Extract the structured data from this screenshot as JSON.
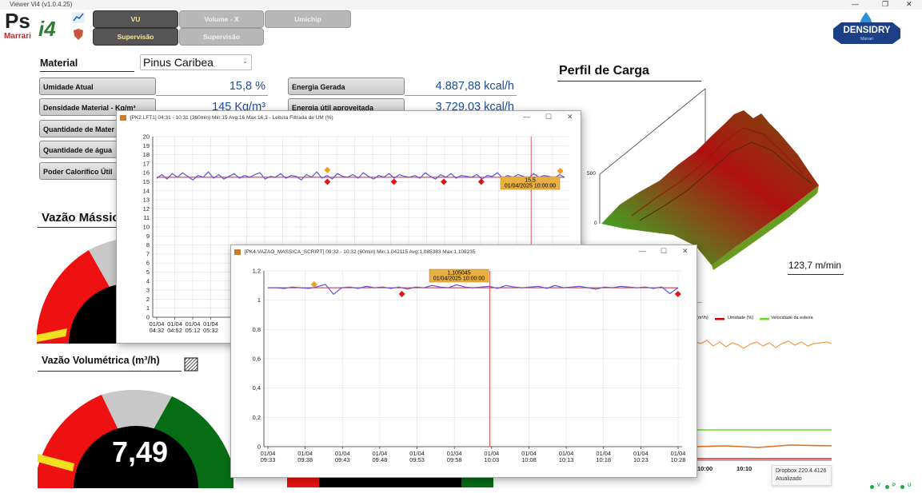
{
  "app": {
    "title": "Viewer Vi4 (v1.0.4.25)"
  },
  "logo": {
    "text_ps": "Ps",
    "text_i4": "i4",
    "text_brand": "Marrari"
  },
  "nav": {
    "row1": [
      "VU",
      "Volume - X",
      "Umichip"
    ],
    "row2": [
      "Supervisão",
      "Supervisão"
    ]
  },
  "densidry": {
    "name": "DENSIDRY",
    "sub": "Marrari"
  },
  "material": {
    "label": "Material",
    "selected": "Pinus Caribea"
  },
  "fields_left": [
    {
      "label": "Umidade Atual",
      "value": "15,8 %"
    },
    {
      "label": "Densidade Material - Kg/m³",
      "value": "145 Kg/m³"
    },
    {
      "label": "Quantidade de Mater",
      "value": ""
    },
    {
      "label": "Quantidade de água",
      "value": ""
    },
    {
      "label": "Poder Calorífico Útil",
      "value": ""
    }
  ],
  "fields_right": [
    {
      "label": "Energia Gerada",
      "value": "4.887,88 kcal/h"
    },
    {
      "label": "Energia útil aproveitada",
      "value": "3.729,03 kcal/h"
    }
  ],
  "section_massica": {
    "label": "Vazão Mássic"
  },
  "section_volumetrica": {
    "label": "Vazão Volumétrica (m³/h)",
    "value": "7,49"
  },
  "perfil": {
    "title": "Perfil de Carga",
    "tick_500": "500",
    "tick_0": "0",
    "speed": "123,7 m/min"
  },
  "background_chart": {
    "legend": [
      "(m³/h)",
      "Umidade (%)",
      "Velocidade da esteira"
    ],
    "legend_colors": [
      "#f0a050",
      "#cc0000",
      "#66dd22"
    ],
    "x_ticks": [
      "10:00",
      "10:10"
    ]
  },
  "dropbox": {
    "line1": "Dropbox 220.4.4126",
    "line2": "Atualizado"
  },
  "status_letters": [
    "V",
    "P",
    "U"
  ],
  "window1": {
    "title": "[PK2.LFT1]   04:31 - 10:31  (360min)   Min:15   Avg:16   Max:16,3   - Leitura Filtrada de UM (%)",
    "tooltip_value": "15,5",
    "tooltip_date": "01/04/2025 10:00:00"
  },
  "window2": {
    "title": "[PK4.VAZAO_MASSICA_SCRIPT]   09:32 - 10:32   (60min)   Min:1,042115   Avg:1,085383   Max:1,108235",
    "tooltip_value": "1,105045",
    "tooltip_date": "01/04/2025 10:00:00"
  },
  "window_controls": [
    "—",
    "☐",
    "✕"
  ],
  "chart_data": [
    {
      "type": "line",
      "title": "[PK2.LFT1] Leitura Filtrada de UM (%)",
      "xlabel": "",
      "ylabel": "",
      "ylim": [
        0,
        20
      ],
      "y_ticks": [
        0,
        1,
        2,
        3,
        4,
        5,
        6,
        7,
        8,
        9,
        10,
        11,
        12,
        13,
        14,
        15,
        16,
        17,
        18,
        19,
        20
      ],
      "x_ticks": [
        [
          "01/04",
          "04:32"
        ],
        [
          "01/04",
          "04:52"
        ],
        [
          "01/04",
          "05:12"
        ],
        [
          "01/04",
          "05:32"
        ]
      ],
      "series": [
        {
          "name": "UM",
          "color": "#6a4fd6",
          "values": [
            15.4,
            15.8,
            15.3,
            15.9,
            15.5,
            16.0,
            15.6,
            15.2,
            15.7,
            15.5,
            16.1,
            15.4,
            15.8,
            15.3,
            15.6,
            15.9,
            15.4,
            15.7,
            15.5,
            15.8,
            16.0,
            15.3,
            15.6,
            15.5,
            15.9,
            15.4,
            15.7,
            15.6,
            15.2,
            15.8,
            15.5,
            16.1,
            15.4,
            15.7,
            15.3,
            15.9,
            15.6,
            15.5,
            15.8,
            15.4,
            16.0,
            15.6,
            15.3,
            15.7,
            15.5,
            15.9,
            15.4,
            15.8,
            15.6,
            15.5,
            15.7,
            15.4,
            16.0,
            15.6,
            15.3,
            15.8,
            15.5,
            15.9,
            15.4,
            15.7,
            15.6,
            15.5,
            15.8,
            15.3,
            15.7,
            15.6,
            16.0,
            15.4,
            15.7,
            15.5,
            15.8,
            15.6,
            15.4,
            15.9,
            15.5,
            15.7,
            15.6,
            15.4,
            15.8,
            15.5
          ]
        }
      ],
      "average": 15.5,
      "max_markers": [
        {
          "x": 0.42,
          "y": 16.3
        },
        {
          "x": 0.98,
          "y": 16.2
        }
      ],
      "min_markers": [
        {
          "x": 0.42,
          "y": 15.0
        },
        {
          "x": 0.58,
          "y": 15.0
        },
        {
          "x": 0.7,
          "y": 15.0
        },
        {
          "x": 0.79,
          "y": 15.0
        }
      ]
    },
    {
      "type": "line",
      "title": "[PK4.VAZAO_MASSICA_SCRIPT]",
      "xlabel": "",
      "ylabel": "",
      "ylim": [
        0,
        1.2
      ],
      "y_ticks": [
        0,
        0.2,
        0.4,
        0.6,
        0.8,
        1,
        1.2
      ],
      "y_tick_labels": [
        "0",
        "0,2",
        "0,4",
        "0,6",
        "0,8",
        "1",
        "1,2"
      ],
      "x_ticks": [
        [
          "01/04",
          "09:33"
        ],
        [
          "01/04",
          "09:38"
        ],
        [
          "01/04",
          "09:43"
        ],
        [
          "01/04",
          "09:48"
        ],
        [
          "01/04",
          "09:53"
        ],
        [
          "01/04",
          "09:58"
        ],
        [
          "01/04",
          "10:03"
        ],
        [
          "01/04",
          "10:08"
        ],
        [
          "01/04",
          "10:13"
        ],
        [
          "01/04",
          "10:18"
        ],
        [
          "01/04",
          "10:23"
        ],
        [
          "01/04",
          "10:28"
        ]
      ],
      "series": [
        {
          "name": "Vazão",
          "color": "#6a4fd6",
          "values": [
            1.085,
            1.085,
            1.08,
            1.09,
            1.085,
            1.08,
            1.092,
            1.108,
            1.04,
            1.085,
            1.09,
            1.08,
            1.095,
            1.085,
            1.09,
            1.08,
            1.09,
            1.075,
            1.09,
            1.085,
            1.1,
            1.09,
            1.085,
            1.105,
            1.09,
            1.085,
            1.09,
            1.095,
            1.08,
            1.1,
            1.09,
            1.085,
            1.09,
            1.095,
            1.08,
            1.1,
            1.085,
            1.09,
            1.095,
            1.085,
            1.075,
            1.09,
            1.085,
            1.095,
            1.09,
            1.085,
            1.09,
            1.08,
            1.09,
            1.045,
            1.085
          ]
        }
      ],
      "average": 1.085,
      "max_markers": [
        {
          "x": 0.12,
          "y": 1.108
        }
      ],
      "min_markers": [
        {
          "x": 0.33,
          "y": 1.042
        },
        {
          "x": 0.99,
          "y": 1.042
        }
      ]
    }
  ]
}
